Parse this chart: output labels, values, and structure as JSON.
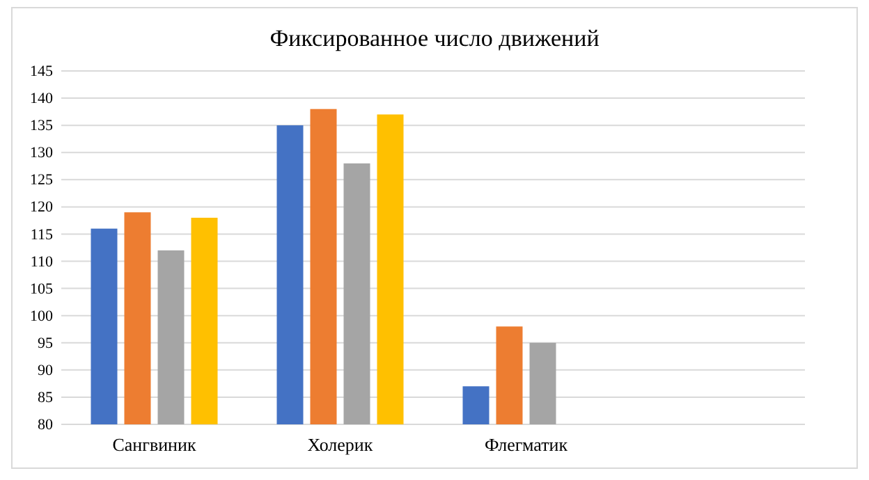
{
  "chart_data": {
    "type": "bar",
    "title": "Фиксированное число движений",
    "categories": [
      "Сангвиник",
      "Холерик",
      "Флегматик",
      null
    ],
    "series": [
      {
        "color": "#4472c4",
        "values": [
          116,
          135,
          87,
          null
        ]
      },
      {
        "color": "#ed7d31",
        "values": [
          119,
          138,
          98,
          null
        ]
      },
      {
        "color": "#a5a5a5",
        "values": [
          112,
          128,
          95,
          null
        ]
      },
      {
        "color": "#ffc000",
        "values": [
          118,
          137,
          null,
          null
        ]
      }
    ],
    "ylim": [
      80,
      145
    ],
    "yticks": [
      80,
      85,
      90,
      95,
      100,
      105,
      110,
      115,
      120,
      125,
      130,
      135,
      140,
      145
    ],
    "grid": "y"
  }
}
